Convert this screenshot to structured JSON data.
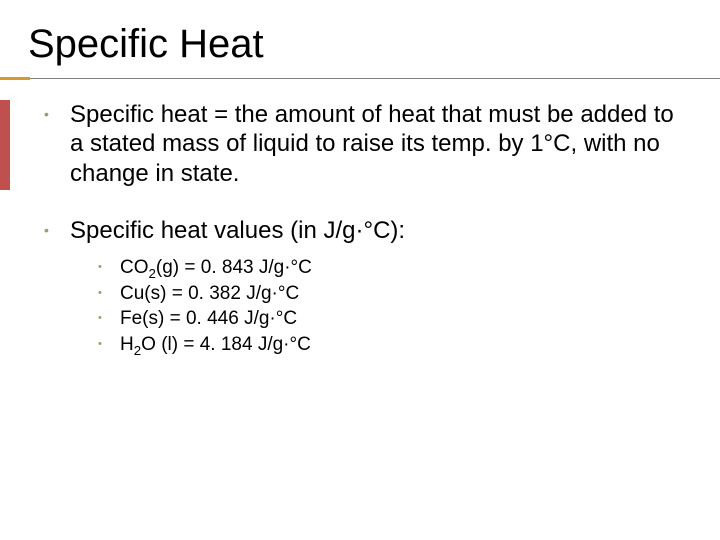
{
  "title": "Specific Heat",
  "bullets": [
    {
      "text": "Specific heat = the amount of heat that must be added to a stated mass of liquid to raise its temp. by 1°C, with no change in state."
    },
    {
      "text": "Specific heat values (in J/g·°C):",
      "sub": [
        {
          "html": "CO<sub>2</sub>(g) = 0. 843 J/g·°C"
        },
        {
          "html": "Cu(s) = 0. 382 J/g·°C"
        },
        {
          "html": "Fe(s) = 0. 446 J/g·°C"
        },
        {
          "html": "H<sub>2</sub>O (l) = 4. 184 J/g·°C"
        }
      ]
    }
  ],
  "colors": {
    "bullet": "#9d9d6c",
    "underline": "#808080",
    "underline_accent": "#d69a2b",
    "side_accent": "#c0504d",
    "text": "#000000",
    "background": "#ffffff"
  },
  "title_fontsize": 40,
  "body_fontsize": 24,
  "sub_fontsize": 19
}
